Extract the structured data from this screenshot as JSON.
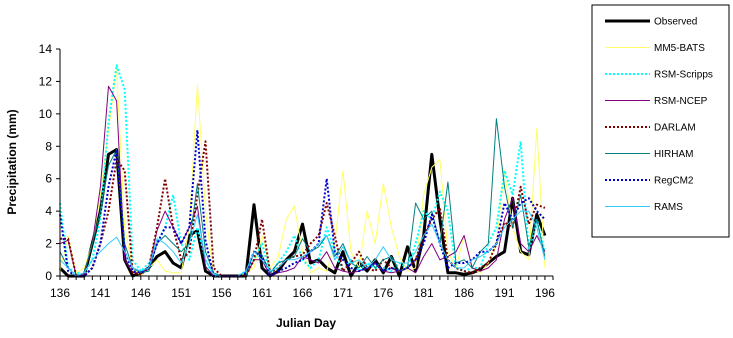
{
  "chart_data": {
    "type": "line",
    "xlabel": "Julian Day",
    "ylabel": "Precipitation (mm)",
    "ylim": [
      0,
      14
    ],
    "yticks": [
      0,
      2,
      4,
      6,
      8,
      10,
      12,
      14
    ],
    "xlim": [
      136,
      197
    ],
    "xticks": [
      136,
      141,
      146,
      151,
      156,
      161,
      166,
      171,
      176,
      181,
      186,
      191,
      196
    ],
    "grid": false,
    "legend_placement": "right",
    "x": [
      136,
      137,
      138,
      139,
      140,
      141,
      142,
      143,
      144,
      145,
      146,
      147,
      148,
      149,
      150,
      151,
      152,
      153,
      154,
      155,
      156,
      157,
      158,
      159,
      160,
      161,
      162,
      163,
      164,
      165,
      166,
      167,
      168,
      169,
      170,
      171,
      172,
      173,
      174,
      175,
      176,
      177,
      178,
      179,
      180,
      181,
      182,
      183,
      184,
      185,
      186,
      187,
      188,
      189,
      190,
      191,
      192,
      193,
      194,
      195,
      196
    ],
    "series": [
      {
        "name": "Observed",
        "color": "#000000",
        "dash": "solid",
        "width": 3,
        "values": [
          0.5,
          0,
          0,
          0,
          2,
          4,
          7.5,
          7.8,
          1,
          0,
          0.2,
          0.5,
          1.2,
          1.5,
          0.8,
          0.5,
          2.5,
          2.8,
          0.3,
          0,
          0,
          0,
          0,
          0,
          4.4,
          0.5,
          0,
          0.3,
          1,
          1.5,
          3.2,
          0.8,
          1,
          0.5,
          0.2,
          1.5,
          0,
          0.8,
          0.3,
          1,
          0.2,
          1.2,
          0,
          1.8,
          0.3,
          2.5,
          7.5,
          3.5,
          0.2,
          0.2,
          0.1,
          0.2,
          0.4,
          0.8,
          1.2,
          1.5,
          4.8,
          1.5,
          1.3,
          3.8,
          2.5
        ]
      },
      {
        "name": "MM5-BATS",
        "color": "#ffff66",
        "dash": "solid",
        "width": 1,
        "values": [
          0.3,
          2.5,
          0.2,
          0.5,
          2,
          5,
          9,
          12.8,
          3,
          0.5,
          0,
          0.5,
          1,
          0.3,
          0.2,
          0.2,
          3,
          11.8,
          4,
          0,
          0,
          0,
          0,
          0.2,
          0.5,
          2.5,
          0.5,
          1.2,
          3.5,
          4.3,
          1.5,
          0.2,
          0.5,
          0.3,
          2,
          6.5,
          1.5,
          0.5,
          4,
          2,
          5.7,
          3,
          1.2,
          0.3,
          0.5,
          5,
          6.7,
          7.2,
          1.5,
          0.5,
          2.5,
          0.5,
          0.2,
          0.8,
          2,
          6.5,
          3,
          1.5,
          1,
          9.1,
          0.5
        ]
      },
      {
        "name": "RSM-Scripps",
        "color": "#00ffff",
        "dash": "dot",
        "width": 2,
        "values": [
          4.5,
          0.5,
          0.2,
          0.1,
          1,
          3.5,
          9.5,
          13,
          11.5,
          1,
          0.3,
          0.8,
          2,
          3,
          5,
          2,
          1,
          3,
          1,
          0,
          0,
          0,
          0,
          0.3,
          1,
          2,
          0.2,
          0.8,
          1.5,
          2.5,
          1,
          0.5,
          1,
          3,
          1.5,
          0.3,
          1,
          0.3,
          0.8,
          0.5,
          0.5,
          0.3,
          0.8,
          0.5,
          2,
          4,
          3.5,
          5.2,
          4,
          0.5,
          0.3,
          0.5,
          0.5,
          2,
          3,
          6.5,
          5,
          8.3,
          1.5,
          3.5,
          1.5
        ]
      },
      {
        "name": "RSM-NCEP",
        "color": "#800080",
        "dash": "solid",
        "width": 1,
        "values": [
          2,
          2.2,
          0,
          0.1,
          2,
          5.5,
          11.7,
          10.8,
          1,
          0.2,
          0.2,
          0.5,
          2.8,
          4,
          3,
          2,
          3,
          4.3,
          0.6,
          0,
          0,
          0,
          0,
          0,
          1,
          1,
          0,
          0.2,
          0.3,
          0.5,
          1.2,
          1,
          0.8,
          1.5,
          0.5,
          0.3,
          0.2,
          0.3,
          0.5,
          0.8,
          0.3,
          0.2,
          0.3,
          0.5,
          0.2,
          1.2,
          2,
          1,
          1.2,
          1.5,
          2.5,
          0.5,
          0.3,
          0.5,
          1,
          3.5,
          4.8,
          2,
          1.5,
          2.5,
          1.5
        ]
      },
      {
        "name": "DARLAM",
        "color": "#800000",
        "dash": "dot",
        "width": 2,
        "values": [
          2.3,
          2.3,
          0,
          0,
          0.5,
          2,
          4,
          7.2,
          6.5,
          0.2,
          0.1,
          0.5,
          3,
          6,
          3,
          1,
          1.5,
          5,
          8.3,
          0.5,
          0,
          0,
          0,
          0,
          1,
          3.5,
          0.2,
          0.5,
          1,
          1.2,
          1.3,
          2,
          2.5,
          4.5,
          2.5,
          0.3,
          0.8,
          1.5,
          0.5,
          0.3,
          1,
          0.5,
          0.3,
          0.5,
          1,
          2.5,
          3.5,
          4.2,
          1,
          0.5,
          0.3,
          0.2,
          0.5,
          0.8,
          2,
          3.3,
          3,
          5.5,
          3.2,
          4.4,
          4.2
        ]
      },
      {
        "name": "HIRHAM",
        "color": "#008080",
        "dash": "solid",
        "width": 1,
        "values": [
          1.5,
          0.5,
          0,
          0.2,
          2,
          4,
          6.8,
          7.8,
          2,
          0.5,
          0.2,
          0.3,
          2,
          2.5,
          2,
          1.5,
          2,
          5.7,
          1.5,
          0.2,
          0,
          0,
          0,
          0,
          1.5,
          1.3,
          0.2,
          0.8,
          1,
          1.2,
          2.3,
          1.5,
          1.8,
          2.5,
          1.2,
          2,
          0.8,
          0.5,
          1.2,
          0.5,
          1,
          1.2,
          0.3,
          0.5,
          4.5,
          3.5,
          4,
          2,
          5.8,
          0.8,
          1,
          0.5,
          1.5,
          2,
          9.7,
          5.5,
          3,
          5,
          1.8,
          3.5,
          1.2
        ]
      },
      {
        "name": "RegCM2",
        "color": "#0000cc",
        "dash": "dot",
        "width": 2,
        "values": [
          3.8,
          0.3,
          0,
          0,
          0.5,
          2,
          5.5,
          7.8,
          1.5,
          0.3,
          0.2,
          0.5,
          2,
          3,
          3,
          2,
          3,
          9,
          2.2,
          0,
          0,
          0,
          0,
          0.2,
          1.5,
          1.2,
          0,
          0.3,
          0.5,
          0.8,
          1,
          1.5,
          2,
          6,
          1.5,
          1,
          0.5,
          0.3,
          0.5,
          0.8,
          0.3,
          0.5,
          0.3,
          0.5,
          1,
          2,
          3.8,
          2,
          0.5,
          0.8,
          0.8,
          1,
          1.5,
          1.5,
          2,
          4.5,
          3.5,
          4.5,
          4.8,
          4,
          3.5
        ]
      },
      {
        "name": "RAMS",
        "color": "#33ccff",
        "dash": "solid",
        "width": 1,
        "values": [
          1,
          0.5,
          0,
          0.2,
          1,
          1.5,
          2,
          2.4,
          1.5,
          0.5,
          0.3,
          0.5,
          2.3,
          2,
          1.5,
          0.8,
          2,
          3.8,
          1,
          0.1,
          0,
          0,
          0,
          0.3,
          1.5,
          1,
          0.3,
          0.5,
          1,
          1,
          1.2,
          1.5,
          2,
          2.5,
          1,
          1.8,
          0.8,
          1,
          0.5,
          1,
          1.8,
          1,
          0.8,
          0.8,
          1.5,
          2.5,
          3.2,
          2,
          1,
          0.5,
          0.5,
          1,
          1.2,
          1.5,
          2,
          3,
          3.5,
          4,
          4,
          3,
          1
        ]
      }
    ]
  }
}
